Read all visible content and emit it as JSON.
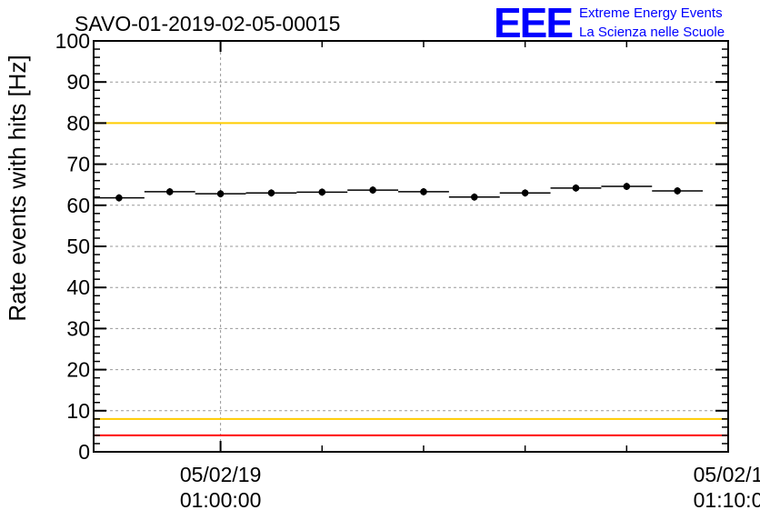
{
  "chart_data": {
    "type": "scatter",
    "title": "SAVO-01-2019-02-05-00015",
    "ylabel": "Rate events with hits [Hz]",
    "xlabel": "",
    "ylim": [
      0,
      100
    ],
    "yticks": [
      0,
      10,
      20,
      30,
      40,
      50,
      60,
      70,
      80,
      90,
      100
    ],
    "x_axis": {
      "start": "2019-02-05 00:57:30",
      "end": "2019-02-05 01:10:00",
      "major_ticks": [
        {
          "time": "2019-02-05 01:00:00",
          "date_label": "05/02/19",
          "time_label": "01:00:00"
        },
        {
          "time": "2019-02-05 01:10:00",
          "date_label": "05/02/1",
          "time_label": "01:10:0"
        }
      ],
      "minor_ticks": [
        "01:02:00",
        "01:04:00",
        "01:06:00",
        "01:08:00"
      ]
    },
    "grid": true,
    "series": [
      {
        "x": [
          "00:58:00",
          "00:59:00",
          "01:00:00",
          "01:01:00",
          "01:02:00",
          "01:03:00",
          "01:04:00",
          "01:05:00",
          "01:06:00",
          "01:07:00",
          "01:08:00",
          "01:09:00"
        ],
        "bin_width_minutes": 1,
        "values": [
          61.8,
          63.3,
          62.8,
          63.0,
          63.2,
          63.7,
          63.3,
          62.0,
          63.0,
          64.2,
          64.6,
          63.5
        ],
        "color": "#000000"
      }
    ],
    "reference_lines": [
      {
        "y": 100,
        "color": "#ff0000"
      },
      {
        "y": 80,
        "color": "#ffcc00"
      },
      {
        "y": 8,
        "color": "#ffcc00"
      },
      {
        "y": 4,
        "color": "#ff0000"
      }
    ],
    "logo": {
      "mark": "EEE",
      "line1": "Extreme Energy Events",
      "line2": "La Scienza nelle Scuole",
      "color": "#0000ff"
    }
  }
}
